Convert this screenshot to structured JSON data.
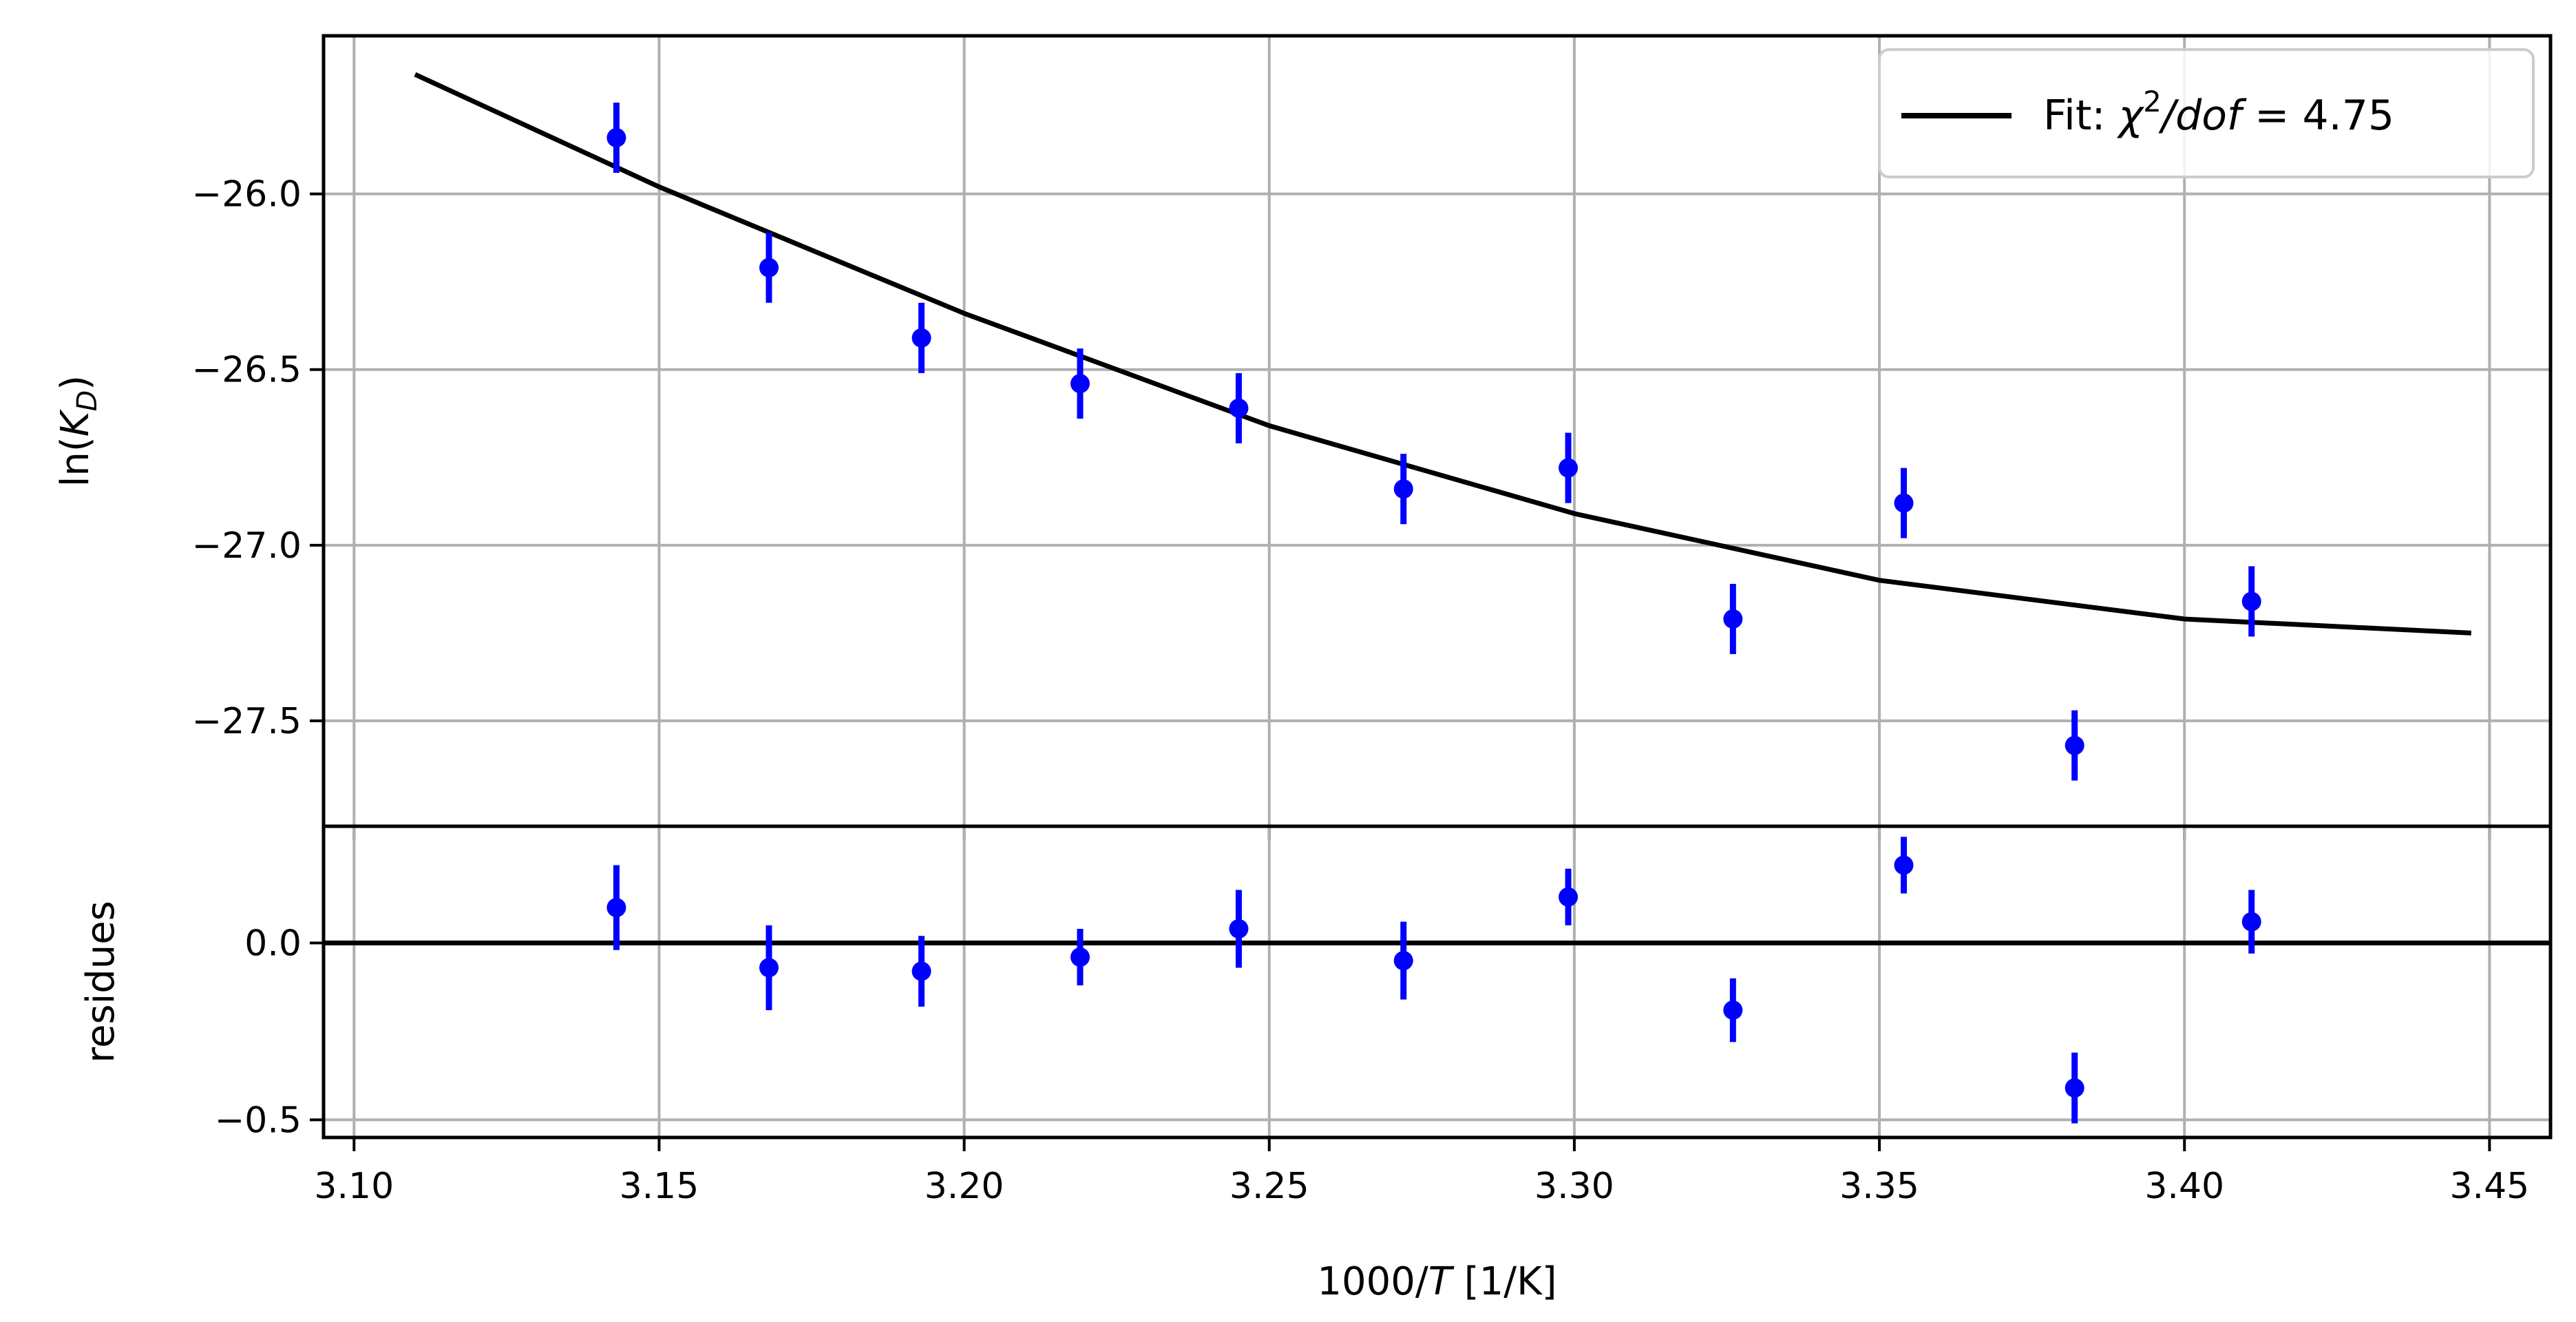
{
  "chart_data": [
    {
      "panel": "main",
      "type": "scatter",
      "ylabel": "ln(K_D)",
      "ylabel_parts": {
        "base": "ln(",
        "symbol": "K",
        "sub": "D",
        "close": ")"
      },
      "xlim": [
        3.095,
        3.46
      ],
      "ylim": [
        -27.8,
        -25.55
      ],
      "x_ticks": [
        3.1,
        3.15,
        3.2,
        3.25,
        3.3,
        3.35,
        3.4,
        3.45
      ],
      "y_ticks": [
        -26.0,
        -26.5,
        -27.0,
        -27.5
      ],
      "y_tick_labels": [
        "−26.0",
        "−26.5",
        "−27.0",
        "−27.5"
      ],
      "grid": true,
      "legend_position": "top-right",
      "legend": {
        "prefix": "Fit: ",
        "chi": "χ",
        "sup": "2",
        "dof": "/dof",
        "suffix": " = 4.75"
      },
      "points": {
        "color": "#0000ff",
        "x": [
          3.143,
          3.168,
          3.193,
          3.219,
          3.245,
          3.272,
          3.299,
          3.326,
          3.354,
          3.382,
          3.411
        ],
        "y": [
          -25.84,
          -26.21,
          -26.41,
          -26.54,
          -26.61,
          -26.84,
          -26.78,
          -27.21,
          -26.88,
          -27.57,
          -27.16
        ],
        "yerr": [
          0.1,
          0.1,
          0.1,
          0.1,
          0.1,
          0.1,
          0.1,
          0.1,
          0.1,
          0.1,
          0.1
        ]
      },
      "fit_line": {
        "color": "#000000",
        "x": [
          3.11,
          3.15,
          3.2,
          3.25,
          3.3,
          3.35,
          3.4,
          3.447
        ],
        "y": [
          -25.66,
          -25.98,
          -26.34,
          -26.66,
          -26.91,
          -27.1,
          -27.21,
          -27.25
        ]
      }
    },
    {
      "panel": "residues",
      "type": "scatter",
      "ylabel": "residues",
      "xlabel_parts": {
        "pre": "1000/",
        "italic": "T",
        "post": " [1/K]"
      },
      "xlim": [
        3.095,
        3.46
      ],
      "ylim": [
        -0.55,
        0.33
      ],
      "x_ticks": [
        3.1,
        3.15,
        3.2,
        3.25,
        3.3,
        3.35,
        3.4,
        3.45
      ],
      "x_tick_labels": [
        "3.10",
        "3.15",
        "3.20",
        "3.25",
        "3.30",
        "3.35",
        "3.40",
        "3.45"
      ],
      "y_ticks": [
        0.0,
        -0.5
      ],
      "y_tick_labels": [
        "0.0",
        "−0.5"
      ],
      "grid": true,
      "zero_line": 0.0,
      "points": {
        "color": "#0000ff",
        "x": [
          3.143,
          3.168,
          3.193,
          3.219,
          3.245,
          3.272,
          3.299,
          3.326,
          3.354,
          3.382,
          3.411
        ],
        "y": [
          0.1,
          -0.07,
          -0.08,
          -0.04,
          0.04,
          -0.05,
          0.13,
          -0.19,
          0.22,
          -0.41,
          0.06
        ],
        "yerr": [
          0.12,
          0.12,
          0.1,
          0.08,
          0.11,
          0.11,
          0.08,
          0.09,
          0.08,
          0.1,
          0.09
        ]
      }
    }
  ]
}
